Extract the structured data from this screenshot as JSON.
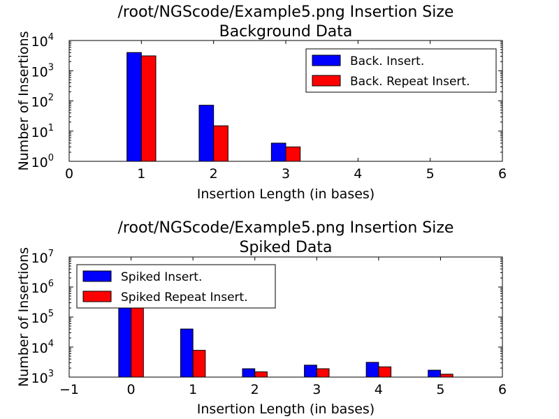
{
  "chart_data": [
    {
      "type": "bar",
      "title": "/root/NGScode/Example5.png Insertion Size",
      "subtitle": "Background Data",
      "xlabel": "Insertion Length (in bases)",
      "ylabel": "Number of Insertions",
      "xlim": [
        0,
        6
      ],
      "ylim": [
        1,
        10000
      ],
      "yscale": "log",
      "xticks": [
        "0",
        "1",
        "2",
        "3",
        "4",
        "5",
        "6"
      ],
      "yticks": [
        {
          "base": "10",
          "exp": "0"
        },
        {
          "base": "10",
          "exp": "1"
        },
        {
          "base": "10",
          "exp": "2"
        },
        {
          "base": "10",
          "exp": "3"
        },
        {
          "base": "10",
          "exp": "4"
        }
      ],
      "grid": false,
      "legend_position": "top-right",
      "x": [
        1,
        2,
        3,
        4,
        5,
        6
      ],
      "series": [
        {
          "name": "Back. Insert.",
          "color": "#0000ff",
          "values": [
            4000,
            72,
            4,
            0,
            0,
            1
          ]
        },
        {
          "name": "Back. Repeat Insert.",
          "color": "#ff0000",
          "values": [
            3100,
            15,
            3,
            0,
            0,
            0
          ]
        }
      ]
    },
    {
      "type": "bar",
      "title": "/root/NGScode/Example5.png Insertion Size",
      "subtitle": "Spiked Data",
      "xlabel": "Insertion Length (in bases)",
      "ylabel": "Number of Insertions",
      "xlim": [
        -1,
        6
      ],
      "ylim": [
        1000,
        10000000
      ],
      "yscale": "log",
      "xticks": [
        "−1",
        "0",
        "1",
        "2",
        "3",
        "4",
        "5",
        "6"
      ],
      "yticks": [
        {
          "base": "10",
          "exp": "3"
        },
        {
          "base": "10",
          "exp": "4"
        },
        {
          "base": "10",
          "exp": "5"
        },
        {
          "base": "10",
          "exp": "6"
        },
        {
          "base": "10",
          "exp": "7"
        }
      ],
      "grid": false,
      "legend_position": "top-left",
      "x": [
        0,
        1,
        2,
        3,
        4,
        5
      ],
      "series": [
        {
          "name": "Spiked Insert.",
          "color": "#0000ff",
          "values": [
            250000,
            40000,
            1900,
            2500,
            3100,
            1700
          ]
        },
        {
          "name": "Spiked Repeat Insert.",
          "color": "#ff0000",
          "values": [
            250000,
            7800,
            1500,
            1900,
            2200,
            1250
          ]
        }
      ]
    }
  ]
}
